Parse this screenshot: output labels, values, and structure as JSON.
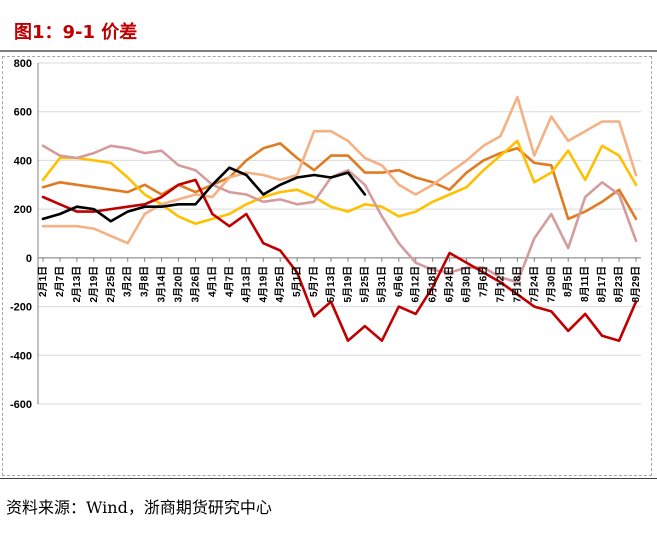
{
  "title": "图1：9-1 价差",
  "source": "资料来源：Wind，浙商期货研究中心",
  "chart_data": {
    "type": "line",
    "title": "图1：9-1 价差",
    "xlabel": "",
    "ylabel": "",
    "ylim": [
      -600,
      800
    ],
    "yticks": [
      -600,
      -400,
      -200,
      0,
      200,
      400,
      600,
      800
    ],
    "grid": "horizontal",
    "legend": "none",
    "x": [
      "2月1日",
      "2月7日",
      "2月13日",
      "2月19日",
      "2月25日",
      "3月2日",
      "3月8日",
      "3月14日",
      "3月20日",
      "3月26日",
      "4月1日",
      "4月7日",
      "4月13日",
      "4月19日",
      "4月25日",
      "5月1日",
      "5月7日",
      "5月13日",
      "5月19日",
      "5月25日",
      "5月31日",
      "6月6日",
      "6月12日",
      "6月18日",
      "6月24日",
      "6月30日",
      "7月6日",
      "7月12日",
      "7月18日",
      "7月24日",
      "7月30日",
      "8月5日",
      "8月11日",
      "8月17日",
      "8月23日",
      "8月29日"
    ],
    "series": [
      {
        "color": "#e07b22",
        "values": [
          290,
          310,
          300,
          290,
          280,
          270,
          300,
          260,
          300,
          270,
          300,
          330,
          400,
          450,
          470,
          410,
          360,
          420,
          420,
          350,
          350,
          360,
          330,
          310,
          280,
          350,
          400,
          430,
          450,
          390,
          380,
          160,
          190,
          230,
          280,
          160
        ]
      },
      {
        "color": "#ffc000",
        "values": [
          320,
          410,
          410,
          400,
          390,
          330,
          260,
          220,
          170,
          140,
          160,
          180,
          220,
          250,
          270,
          280,
          250,
          210,
          190,
          220,
          210,
          170,
          190,
          230,
          260,
          290,
          360,
          420,
          480,
          310,
          350,
          440,
          320,
          460,
          420,
          300
        ]
      },
      {
        "color": "#f4b183",
        "values": [
          130,
          130,
          130,
          120,
          90,
          60,
          180,
          220,
          240,
          260,
          250,
          330,
          350,
          340,
          320,
          340,
          520,
          520,
          480,
          410,
          380,
          300,
          260,
          300,
          350,
          400,
          460,
          500,
          660,
          420,
          580,
          480,
          520,
          560,
          560,
          340
        ]
      },
      {
        "color": "#d49c9c",
        "values": [
          460,
          420,
          410,
          430,
          460,
          450,
          430,
          440,
          380,
          360,
          300,
          270,
          260,
          230,
          240,
          220,
          230,
          330,
          360,
          300,
          170,
          60,
          -20,
          -50,
          -60,
          -40,
          -40,
          -80,
          -100,
          80,
          180,
          40,
          250,
          310,
          260,
          70
        ]
      },
      {
        "color": "#c00000",
        "values": [
          250,
          220,
          190,
          190,
          200,
          210,
          220,
          250,
          300,
          320,
          180,
          130,
          180,
          60,
          30,
          -60,
          -240,
          -180,
          -340,
          -280,
          -340,
          -200,
          -230,
          -120,
          20,
          -20,
          -60,
          -100,
          -150,
          -200,
          -220,
          -300,
          -230,
          -320,
          -340,
          -180
        ]
      },
      {
        "color": "#000000",
        "values": [
          160,
          180,
          210,
          200,
          150,
          190,
          210,
          210,
          220,
          220,
          300,
          370,
          340,
          260,
          300,
          330,
          340,
          330,
          350,
          260,
          null,
          null,
          null,
          null,
          null,
          null,
          null,
          null,
          null,
          null,
          null,
          null,
          null,
          null,
          null,
          null
        ]
      }
    ]
  }
}
